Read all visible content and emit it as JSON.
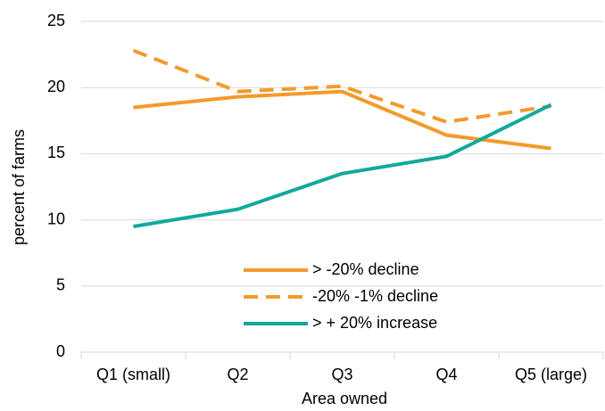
{
  "chart_data": {
    "type": "line",
    "x_label": "Area owned",
    "y_label": "percent of farms",
    "categories": [
      "Q1 (small)",
      "Q2",
      "Q3",
      "Q4",
      "Q5 (large)"
    ],
    "series": [
      {
        "name": "> -20% decline",
        "color": "#f39a2c",
        "line_style": "solid",
        "values": [
          18.5,
          19.3,
          19.7,
          16.4,
          15.4
        ]
      },
      {
        "name": "-20% -1% decline",
        "color": "#f39a2c",
        "line_style": "dashed",
        "values": [
          22.8,
          19.7,
          20.1,
          17.4,
          18.6
        ]
      },
      {
        "name": "> + 20% increase",
        "color": "#12a89d",
        "line_style": "solid",
        "values": [
          9.5,
          10.8,
          13.5,
          14.8,
          18.7
        ]
      }
    ],
    "ylim": [
      0,
      25
    ],
    "yticks": [
      0,
      5,
      10,
      15,
      20,
      25
    ],
    "grid": true,
    "legend": "lower center"
  }
}
